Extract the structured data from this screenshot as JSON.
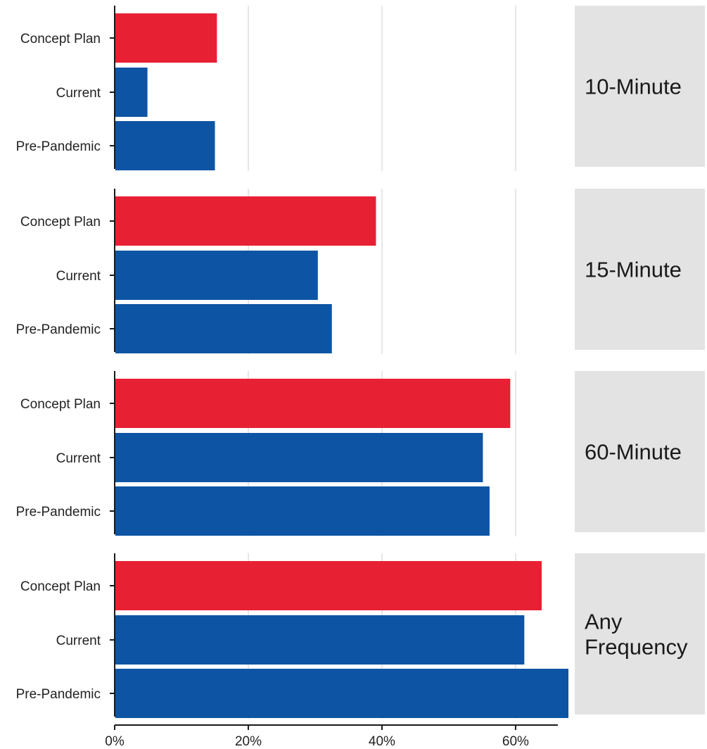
{
  "chart_data": {
    "type": "bar",
    "orientation": "horizontal",
    "facet_labels": [
      [
        "10-Minute"
      ],
      [
        "15-Minute"
      ],
      [
        "60-Minute"
      ],
      [
        "Any",
        "Frequency"
      ]
    ],
    "categories": [
      "Concept Plan",
      "Current",
      "Pre-Pandemic"
    ],
    "facets": [
      {
        "label": "10-Minute",
        "values": [
          15.2,
          4.8,
          14.9
        ]
      },
      {
        "label": "15-Minute",
        "values": [
          39.0,
          30.3,
          32.4
        ]
      },
      {
        "label": "60-Minute",
        "values": [
          59.1,
          55.0,
          56.0
        ]
      },
      {
        "label": "Any Frequency",
        "values": [
          63.8,
          61.2,
          67.8
        ]
      }
    ],
    "xlim": [
      0,
      67.8
    ],
    "x_ticks": [
      0,
      20,
      40,
      60
    ],
    "x_tick_labels": [
      "0%",
      "20%",
      "40%",
      "60%"
    ],
    "grid": true,
    "colors": {
      "Concept Plan": "#e82034",
      "Current": "#0d55a4",
      "Pre-Pandemic": "#0d55a4"
    },
    "facet_strip_color": "#e3e3e3",
    "gridline_color": "#e6e6e6"
  }
}
